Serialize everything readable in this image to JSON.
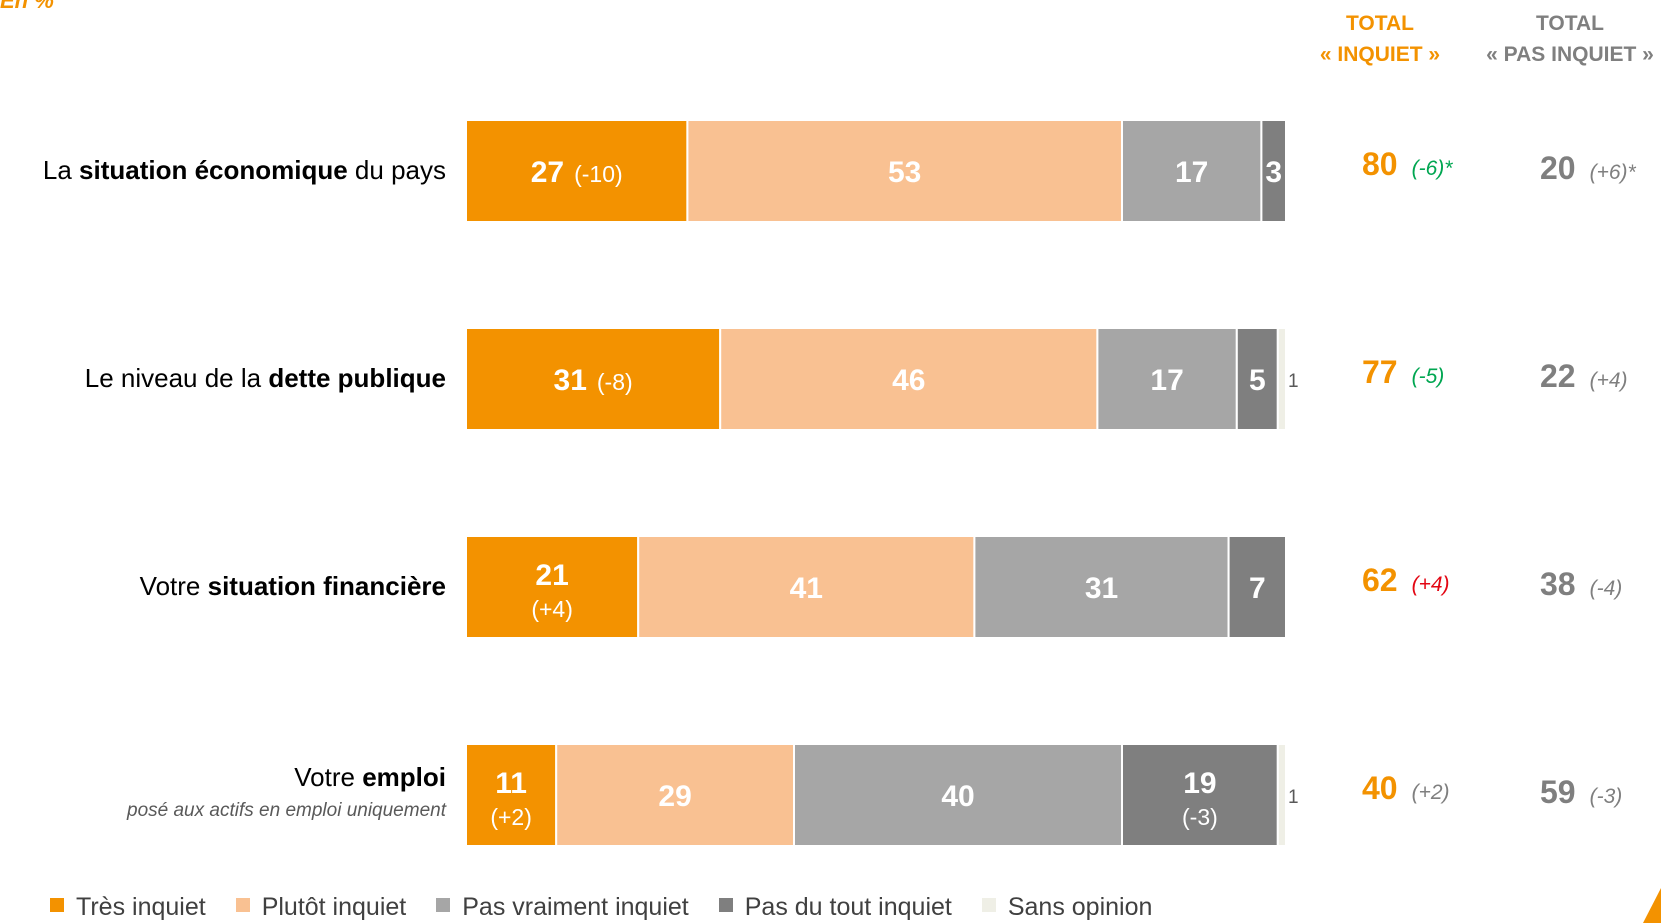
{
  "unit_label": "En %",
  "columns": {
    "inquiet": {
      "line1": "TOTAL",
      "line2": "« INQUIET »"
    },
    "pas_inquiet": {
      "line1": "TOTAL",
      "line2": "« PAS INQUIET »"
    }
  },
  "colors": {
    "tres_inquiet": "#f39200",
    "plutot_inquiet": "#f9c192",
    "pas_vraiment_inquiet": "#a6a6a6",
    "pas_du_tout_inquiet": "#7f7f7f",
    "sans_opinion": "#efefe6",
    "delta_green": "#00a651",
    "delta_red": "#e30613",
    "delta_grey": "#7f7f7f"
  },
  "chart_data": {
    "type": "bar",
    "orientation": "horizontal",
    "stacked": true,
    "unit": "%",
    "legend_position": "bottom",
    "categories": [
      {
        "pre": "La ",
        "bold": "situation économique",
        "post": " du pays",
        "sub": ""
      },
      {
        "pre": "Le niveau de la ",
        "bold": "dette publique",
        "post": "",
        "sub": ""
      },
      {
        "pre": "Votre ",
        "bold": "situation financière",
        "post": "",
        "sub": ""
      },
      {
        "pre": "Votre ",
        "bold": "emploi",
        "post": "",
        "sub": "posé aux actifs en emploi uniquement"
      }
    ],
    "series": [
      {
        "name": "Très inquiet",
        "values": [
          27,
          31,
          21,
          11
        ],
        "deltas": [
          "(-10)",
          "(-8)",
          "(+4)",
          "(+2)"
        ]
      },
      {
        "name": "Plutôt inquiet",
        "values": [
          53,
          46,
          41,
          29
        ],
        "deltas": [
          "",
          "",
          "",
          ""
        ]
      },
      {
        "name": "Pas vraiment inquiet",
        "values": [
          17,
          17,
          31,
          40
        ],
        "deltas": [
          "",
          "",
          "",
          ""
        ]
      },
      {
        "name": "Pas du tout inquiet",
        "values": [
          3,
          5,
          7,
          19
        ],
        "deltas": [
          "",
          "",
          "",
          "(-3)"
        ]
      },
      {
        "name": "Sans opinion",
        "values": [
          0,
          1,
          0,
          1
        ],
        "deltas": [
          "",
          "",
          "",
          ""
        ]
      }
    ],
    "totals": {
      "inquiet": [
        {
          "value": "80",
          "delta": "(-6)*",
          "tone": "green"
        },
        {
          "value": "77",
          "delta": "(-5)",
          "tone": "green"
        },
        {
          "value": "62",
          "delta": "(+4)",
          "tone": "red"
        },
        {
          "value": "40",
          "delta": "(+2)",
          "tone": "grey"
        }
      ],
      "pas_inquiet": [
        {
          "value": "20",
          "delta": "(+6)*"
        },
        {
          "value": "22",
          "delta": "(+4)"
        },
        {
          "value": "38",
          "delta": "(-4)"
        },
        {
          "value": "59",
          "delta": "(-3)"
        }
      ]
    }
  }
}
